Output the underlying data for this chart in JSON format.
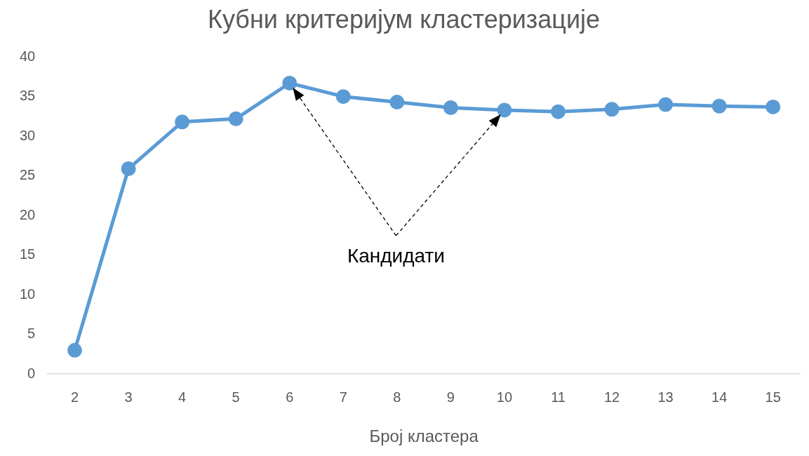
{
  "chart_data": {
    "type": "line",
    "title": "Кубни критеријум кластеризације",
    "xlabel": "Број кластера",
    "categories": [
      "2",
      "3",
      "4",
      "5",
      "6",
      "7",
      "8",
      "9",
      "10",
      "11",
      "12",
      "13",
      "14",
      "15"
    ],
    "series": [
      {
        "color": "#5b9bd5",
        "values": [
          3,
          25.9,
          31.8,
          32.2,
          36.7,
          35,
          34.3,
          33.6,
          33.3,
          33.1,
          33.4,
          34,
          33.8,
          33.7
        ]
      }
    ],
    "ylim": [
      0,
      40
    ],
    "yticks": [
      0,
      5,
      10,
      15,
      20,
      25,
      30,
      35,
      40
    ],
    "grid": false,
    "legend": false,
    "marker": "circle",
    "line_style": "solid",
    "annotations": [
      "Кандидати"
    ]
  }
}
